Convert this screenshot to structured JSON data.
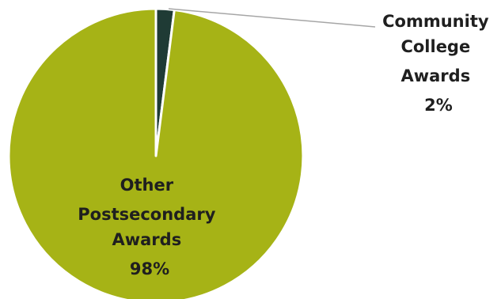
{
  "chart_data": {
    "type": "pie",
    "title": "",
    "slices": [
      {
        "label": "Community College Awards",
        "value": 2,
        "display": "2%",
        "color": "#1f3b35"
      },
      {
        "label": "Other Postsecondary Awards",
        "value": 98,
        "display": "98%",
        "color": "#a6b316"
      }
    ],
    "legend": "none",
    "slice_border_color": "#ffffff",
    "leader_line_color": "#a6a6a6"
  },
  "labels": {
    "community": [
      "Community",
      "College",
      "Awards",
      "2%"
    ],
    "other": [
      "Other",
      "Postsecondary",
      "Awards",
      "98%"
    ]
  }
}
